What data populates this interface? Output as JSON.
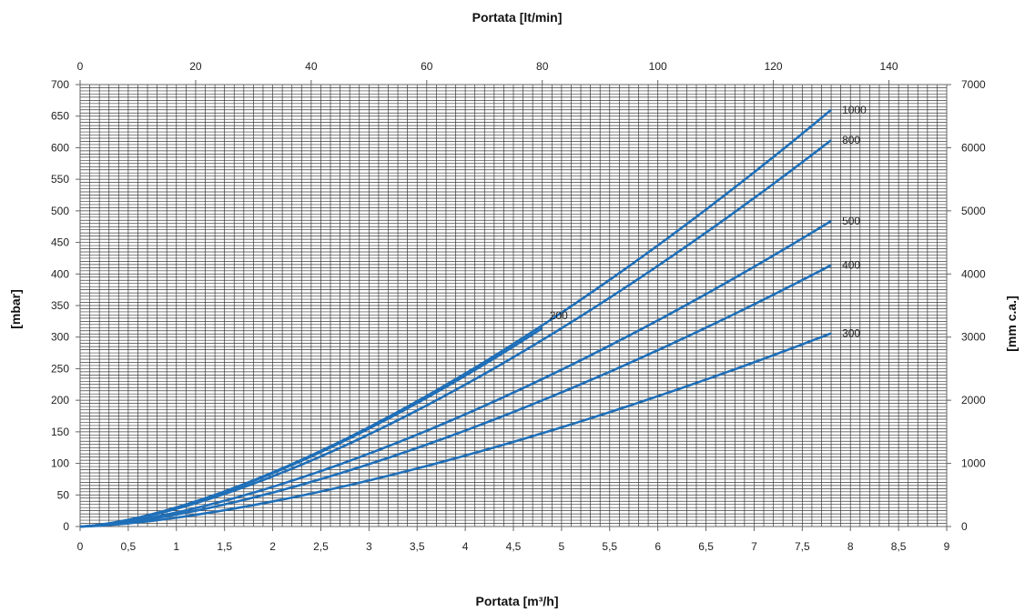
{
  "chart_data": {
    "type": "line",
    "xlabel_bottom": "Portata [m³/h]",
    "xlabel_top": "Portata [lt/min]",
    "ylabel_left": "[mbar]",
    "ylabel_right": "[mm c.a.]",
    "xlim": [
      0,
      9
    ],
    "ylim": [
      0,
      700
    ],
    "x2lim": [
      0,
      150
    ],
    "y2lim": [
      0,
      7000
    ],
    "x_ticks": [
      "0",
      "0,5",
      "1",
      "1,5",
      "2",
      "2,5",
      "3",
      "3,5",
      "4",
      "4,5",
      "5",
      "5,5",
      "6",
      "6,5",
      "7",
      "7,5",
      "8",
      "8,5",
      "9"
    ],
    "y_ticks": [
      "0",
      "50",
      "100",
      "150",
      "200",
      "250",
      "300",
      "350",
      "400",
      "450",
      "500",
      "550",
      "600",
      "650",
      "700"
    ],
    "x2_ticks": [
      "0",
      "20",
      "40",
      "60",
      "80",
      "100",
      "120",
      "140"
    ],
    "y2_ticks": [
      "0",
      "1000",
      "2000",
      "3000",
      "4000",
      "5000",
      "6000",
      "7000"
    ],
    "grid": true,
    "line_color": "#1f6fb8",
    "series": [
      {
        "name": "200",
        "x": [
          0,
          4.8
        ],
        "y": [
          0,
          314
        ],
        "exponent": 1.5
      },
      {
        "name": "1000",
        "x": [
          0,
          7.8
        ],
        "y": [
          0,
          660
        ],
        "exponent": 1.5
      },
      {
        "name": "800",
        "x": [
          0,
          7.8
        ],
        "y": [
          0,
          612
        ],
        "exponent": 1.5
      },
      {
        "name": "500",
        "x": [
          0,
          7.8
        ],
        "y": [
          0,
          484
        ],
        "exponent": 1.5
      },
      {
        "name": "400",
        "x": [
          0,
          7.8
        ],
        "y": [
          0,
          414
        ],
        "exponent": 1.5
      },
      {
        "name": "300",
        "x": [
          0,
          7.8
        ],
        "y": [
          0,
          306
        ],
        "exponent": 1.5
      }
    ]
  }
}
